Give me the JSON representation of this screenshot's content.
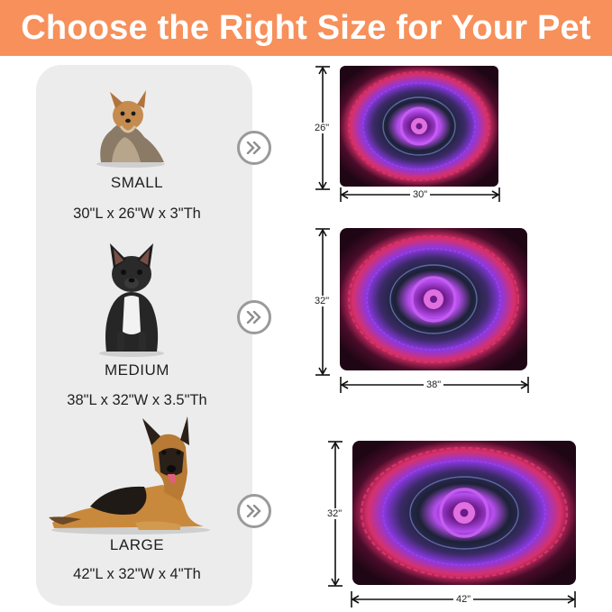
{
  "banner": {
    "title": "Choose the Right Size for Your Pet",
    "color": "#f7905a"
  },
  "sizes": [
    {
      "name": "SMALL",
      "dims": "30\"L x 26\"W x 3\"Th",
      "length_label": "30\"",
      "width_label": "26\"",
      "dog": "yorkshire-terrier"
    },
    {
      "name": "MEDIUM",
      "dims": "38\"L x 32\"W x 3.5\"Th",
      "length_label": "38\"",
      "width_label": "32\"",
      "dog": "french-bulldog"
    },
    {
      "name": "LARGE",
      "dims": "42\"L x 32\"W x 4\"Th",
      "length_label": "42\"",
      "width_label": "32\"",
      "dog": "german-shepherd"
    }
  ],
  "icons": {
    "next": "double-chevron-right-icon"
  },
  "colors": {
    "panel": "#ececec",
    "bed_outer": "#2a0a1c",
    "bed_pink": "#e0306e",
    "bed_purple": "#9a40e8"
  }
}
